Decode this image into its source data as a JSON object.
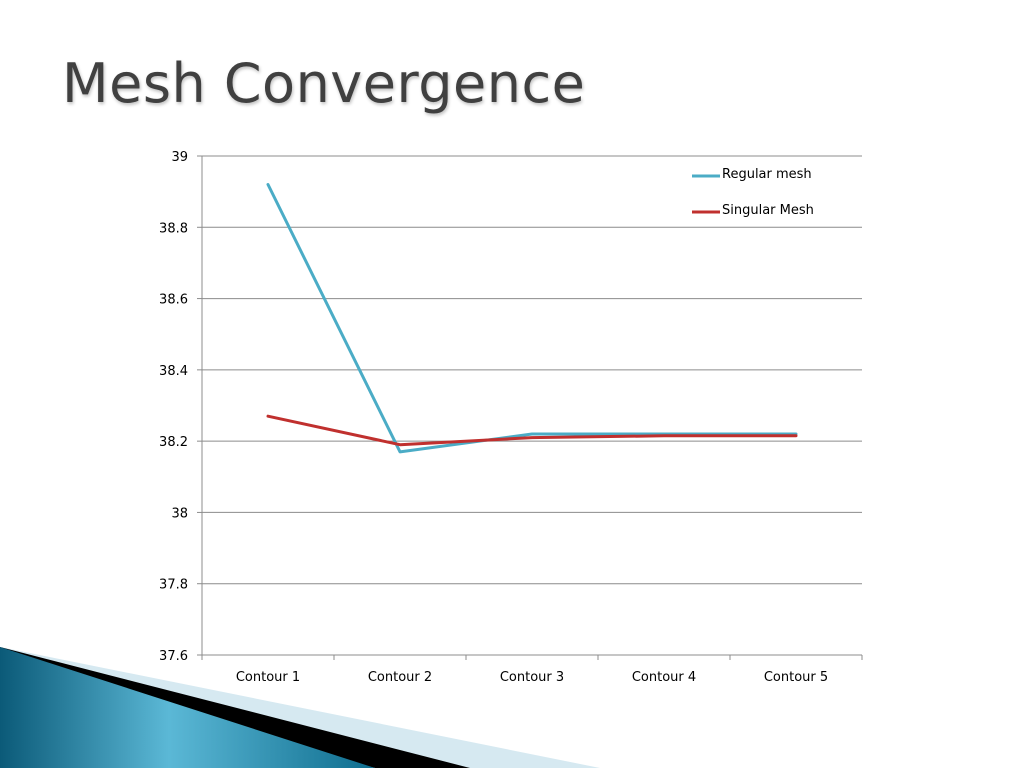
{
  "slide": {
    "title": "Mesh Convergence"
  },
  "chart_data": {
    "type": "line",
    "title": "",
    "xlabel": "",
    "ylabel": "",
    "categories": [
      "Contour 1",
      "Contour 2",
      "Contour 3",
      "Contour 4",
      "Contour 5"
    ],
    "series": [
      {
        "name": "Regular mesh",
        "color": "#4BACC6",
        "values": [
          38.92,
          38.17,
          38.22,
          38.22,
          38.22
        ]
      },
      {
        "name": "Singular Mesh",
        "color": "#C0302E",
        "values": [
          38.27,
          38.19,
          38.21,
          38.215,
          38.215
        ]
      }
    ],
    "ylim": [
      37.6,
      39
    ],
    "yticks": [
      37.6,
      37.8,
      38,
      38.2,
      38.4,
      38.6,
      38.8,
      39
    ],
    "ytick_labels": [
      "37.6",
      "37.8",
      "38",
      "38.2",
      "38.4",
      "38.6",
      "38.8",
      "39"
    ],
    "grid": true,
    "legend_position": "top-right",
    "grid_color": "#8C8C8C"
  },
  "decor": {
    "dark_color": "#0B5A78",
    "light_color": "#5BB8D6",
    "black_color": "#000000",
    "pale_color": "#D6E9F1"
  }
}
